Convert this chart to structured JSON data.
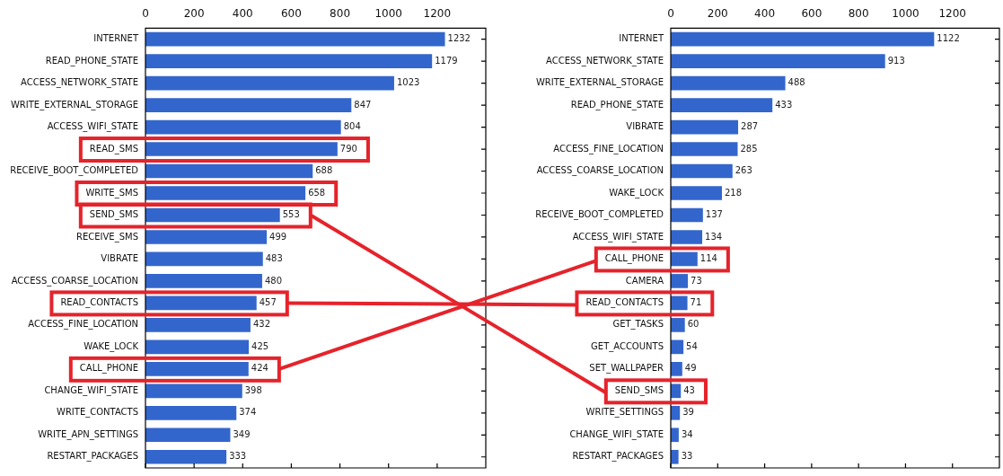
{
  "chart_data": [
    {
      "type": "bar",
      "orientation": "horizontal",
      "color": "#3366cc",
      "data_labels": true,
      "xlim": [
        0,
        1400
      ],
      "xticks": [
        0,
        200,
        400,
        600,
        800,
        1000,
        1200
      ],
      "categories": [
        "INTERNET",
        "READ_PHONE_STATE",
        "ACCESS_NETWORK_STATE",
        "WRITE_EXTERNAL_STORAGE",
        "ACCESS_WIFI_STATE",
        "READ_SMS",
        "RECEIVE_BOOT_COMPLETED",
        "WRITE_SMS",
        "SEND_SMS",
        "RECEIVE_SMS",
        "VIBRATE",
        "ACCESS_COARSE_LOCATION",
        "READ_CONTACTS",
        "ACCESS_FINE_LOCATION",
        "WAKE_LOCK",
        "CALL_PHONE",
        "CHANGE_WIFI_STATE",
        "WRITE_CONTACTS",
        "WRITE_APN_SETTINGS",
        "RESTART_PACKAGES"
      ],
      "values": [
        1232,
        1179,
        1023,
        847,
        804,
        790,
        688,
        658,
        553,
        499,
        483,
        480,
        457,
        432,
        425,
        424,
        398,
        374,
        349,
        333
      ]
    },
    {
      "type": "bar",
      "orientation": "horizontal",
      "color": "#3366cc",
      "data_labels": true,
      "xlim": [
        0,
        1400
      ],
      "xticks": [
        0,
        200,
        400,
        600,
        800,
        1000,
        1200
      ],
      "categories": [
        "INTERNET",
        "ACCESS_NETWORK_STATE",
        "WRITE_EXTERNAL_STORAGE",
        "READ_PHONE_STATE",
        "VIBRATE",
        "ACCESS_FINE_LOCATION",
        "ACCESS_COARSE_LOCATION",
        "WAKE_LOCK",
        "RECEIVE_BOOT_COMPLETED",
        "ACCESS_WIFI_STATE",
        "CALL_PHONE",
        "CAMERA",
        "READ_CONTACTS",
        "GET_TASKS",
        "GET_ACCOUNTS",
        "SET_WALLPAPER",
        "SEND_SMS",
        "WRITE_SETTINGS",
        "CHANGE_WIFI_STATE",
        "RESTART_PACKAGES"
      ],
      "values": [
        1122,
        913,
        488,
        433,
        287,
        285,
        263,
        218,
        137,
        134,
        114,
        73,
        71,
        60,
        54,
        49,
        43,
        39,
        34,
        33
      ]
    }
  ]
}
